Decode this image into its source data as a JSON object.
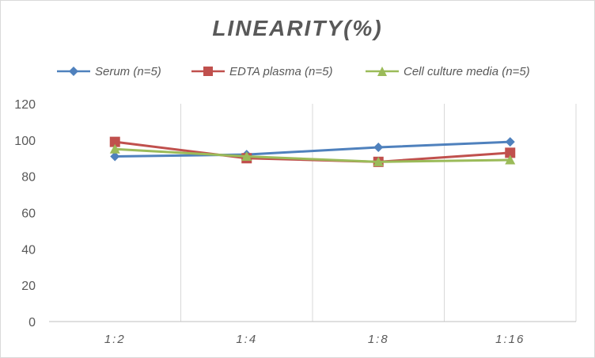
{
  "chart_data": {
    "type": "line",
    "title": "LINEARITY(%)",
    "xlabel": "",
    "ylabel": "",
    "categories": [
      "1:2",
      "1:4",
      "1:8",
      "1:16"
    ],
    "ylim": [
      0,
      120
    ],
    "yticks": [
      0,
      20,
      40,
      60,
      80,
      100,
      120
    ],
    "grid": "vertical",
    "legend_position": "top",
    "series": [
      {
        "name": "Serum (n=5)",
        "values": [
          91,
          92,
          96,
          99
        ],
        "color": "#4f81bd",
        "marker": "diamond"
      },
      {
        "name": "EDTA plasma (n=5)",
        "values": [
          99,
          90,
          88,
          93
        ],
        "color": "#c0504d",
        "marker": "square"
      },
      {
        "name": "Cell culture media (n=5)",
        "values": [
          95,
          91,
          88,
          89
        ],
        "color": "#9bbb59",
        "marker": "triangle"
      }
    ]
  }
}
